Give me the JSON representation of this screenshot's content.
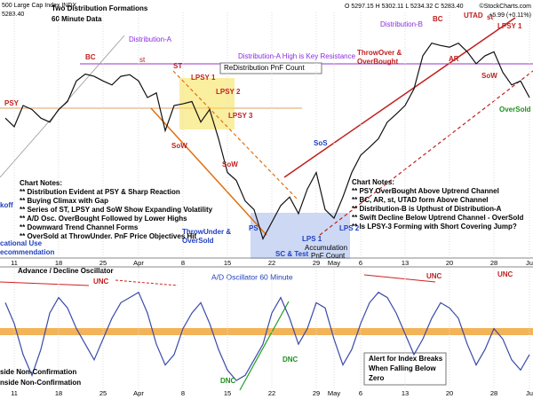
{
  "header": {
    "index": "500 Large Cap Index  INDX",
    "last": "5283.40",
    "quote": "O 5297.15  H 5302.11  L 5234.32  C 5283.40",
    "source": "©StockCharts.com",
    "change": "+5.99 (+0.11%)"
  },
  "chart_data": [
    {
      "type": "line",
      "title": "Two Distribution Formations",
      "subtitle": "60 Minute Data",
      "color": "#111111",
      "categories": [
        null,
        "11",
        null,
        null,
        null,
        null,
        "18",
        null,
        null,
        null,
        null,
        "25",
        null,
        null,
        null,
        "Apr",
        null,
        null,
        null,
        null,
        "8",
        null,
        null,
        null,
        null,
        "15",
        null,
        null,
        null,
        null,
        "22",
        null,
        null,
        null,
        null,
        "29",
        null,
        "May",
        null,
        null,
        "6",
        null,
        null,
        null,
        null,
        "13",
        null,
        null,
        null,
        null,
        "20",
        null,
        null,
        null,
        null,
        "28",
        null,
        null,
        null,
        "Ju"
      ],
      "values": [
        5180,
        5165,
        5202,
        5195,
        5180,
        5173,
        5195,
        5209,
        5245,
        5257,
        5253,
        5245,
        5238,
        5253,
        5256,
        5245,
        5216,
        5224,
        5158,
        5202,
        5205,
        5209,
        5173,
        5195,
        5144,
        5085,
        5071,
        5035,
        5020,
        4969,
        4998,
        5027,
        5042,
        5013,
        5056,
        5085,
        5020,
        5005,
        5042,
        5085,
        5115,
        5129,
        5144,
        5173,
        5187,
        5202,
        5231,
        5289,
        5311,
        5307,
        5304,
        5311,
        5296,
        5275,
        5289,
        5296,
        5260,
        5238,
        5245,
        5216
      ],
      "ylim": [
        4940,
        5340
      ],
      "annotations": [
        "Distribution-A",
        "Distribution-A High is Key Resistance",
        "ReDistribution PnF Count",
        "PSY",
        "BC",
        "st",
        "ST",
        "LPSY 1",
        "LPSY 2",
        "LPSY 3",
        "SoW",
        "SoW",
        "ThrowUnder &",
        "OverSold",
        "PS",
        "SC & Test",
        "LPS 1",
        "LPS 2",
        "SoS",
        "Accumulation",
        "PnF Count",
        "Distribution-B",
        "ThrowOver &",
        "OverBought",
        "BC",
        "UTAD",
        "AR",
        "st",
        "LPSY 1",
        "SoW",
        "OverSold",
        "koff",
        "cational Use",
        "ecommendation"
      ],
      "notes_left": [
        "Chart Notes:",
        "** Distribution Evident at PSY & Sharp Reaction",
        "** Buying Climax with Gap",
        "** Series of ST, LPSY and SoW Show Expanding Volatility",
        "** A/D Osc. OverBought Followed by Lower Highs",
        "** Downward Trend Channel Forms",
        "** OverSold at ThrowUnder. PnF Price Objectives Hit"
      ],
      "notes_right": [
        "Chart Notes:",
        "** PSY OverBought Above Uptrend Channel",
        "** BC, AR, st, UTAD form Above Channel",
        "** Distribution-B is Upthust of Distribution-A",
        "** Swift Decline Below Uptrend Channel - OverSold",
        "** Is LPSY-3 Forming with Short Covering Jump?"
      ]
    },
    {
      "type": "line",
      "title": "Advance / Decline Oscillator",
      "subtitle": "A/D Oscillator 60 Minute",
      "color": "#3b4aa8",
      "categories": [
        null,
        "11",
        null,
        null,
        null,
        null,
        "18",
        null,
        null,
        null,
        null,
        "25",
        null,
        null,
        null,
        "Apr",
        null,
        null,
        null,
        null,
        "8",
        null,
        null,
        null,
        null,
        "15",
        null,
        null,
        null,
        null,
        "22",
        null,
        null,
        null,
        null,
        "29",
        null,
        "May",
        null,
        null,
        "6",
        null,
        null,
        null,
        null,
        "13",
        null,
        null,
        null,
        null,
        "20",
        null,
        null,
        null,
        null,
        "28",
        null,
        null,
        null,
        "Ju"
      ],
      "values": [
        60,
        20,
        -40,
        -80,
        -30,
        40,
        70,
        50,
        10,
        -20,
        -50,
        -10,
        30,
        60,
        70,
        80,
        40,
        -20,
        -60,
        -40,
        10,
        40,
        60,
        20,
        -30,
        -70,
        -90,
        -80,
        -50,
        -20,
        40,
        70,
        30,
        -20,
        10,
        60,
        50,
        -10,
        -60,
        -30,
        20,
        60,
        80,
        70,
        40,
        0,
        -40,
        -10,
        30,
        60,
        50,
        30,
        -20,
        -60,
        -30,
        10,
        -10,
        -50,
        -70,
        -40
      ],
      "ylim": [
        -100,
        100
      ],
      "annotations": [
        "UNC",
        "UNC",
        "UNC",
        "DNC",
        "DNC",
        "Alert for Index Breaks",
        "When Falling Below",
        "Zero",
        "side Non-Confirmation",
        "nside Non-Confirmation"
      ]
    }
  ]
}
